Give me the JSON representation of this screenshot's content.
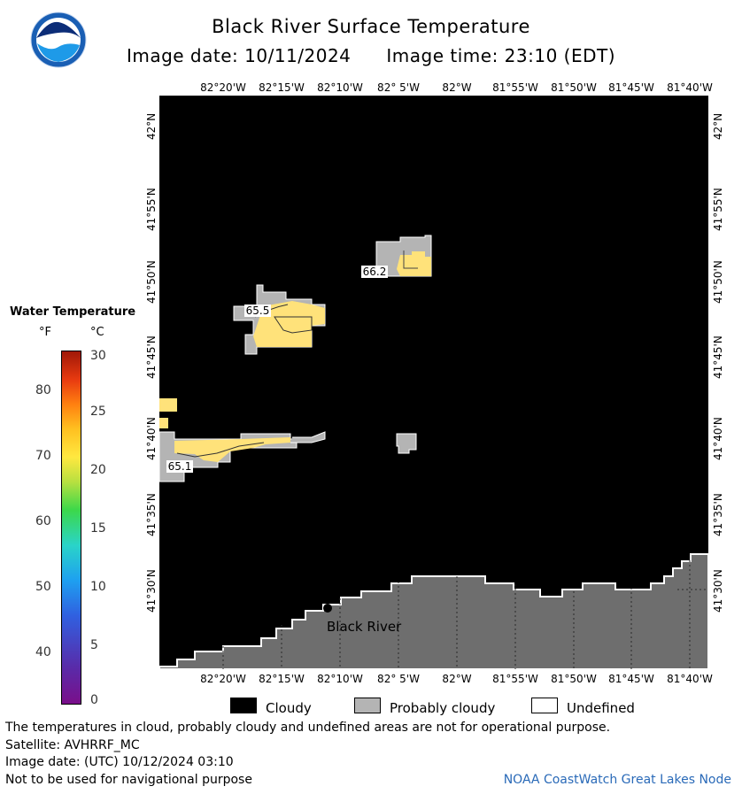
{
  "header": {
    "title": "Black River Surface Temperature",
    "image_date_label": "Image date: 10/11/2024",
    "image_time_label": "Image time: 23:10 (EDT)",
    "logo_text": "NOAA"
  },
  "map": {
    "longitude_labels": [
      "82°20'W",
      "82°15'W",
      "82°10'W",
      "82° 5'W",
      "82°W",
      "81°55'W",
      "81°50'W",
      "81°45'W",
      "81°40'W"
    ],
    "latitude_labels": [
      "42°N",
      "41°55'N",
      "41°50'N",
      "41°45'N",
      "41°40'N",
      "41°35'N",
      "41°30'N"
    ],
    "place_label": "Black River",
    "temperature_labels": [
      "66.2",
      "65.5",
      "65.1"
    ],
    "colors": {
      "cloudy": "#000000",
      "probably_cloudy": "#b4b4b4",
      "land": "#6e6e6e",
      "warm_water": "#ffe27a"
    }
  },
  "legend": {
    "title": "Water Temperature",
    "unit_f": "°F",
    "unit_c": "°C",
    "fahrenheit_ticks": [
      "80",
      "70",
      "60",
      "50",
      "40"
    ],
    "celsius_ticks": [
      "30",
      "25",
      "20",
      "15",
      "10",
      "5",
      "0"
    ],
    "keys": [
      {
        "label": "Cloudy",
        "color": "#000000"
      },
      {
        "label": "Probably cloudy",
        "color": "#b4b4b4"
      },
      {
        "label": "Undefined",
        "color": "#ffffff"
      }
    ]
  },
  "footer": {
    "disclaimer": "The temperatures in cloud, probably cloudy and undefined areas are not for operational purpose.",
    "satellite": "Satellite: AVHRRF_MC",
    "utc_date": "Image date: (UTC) 10/12/2024  03:10",
    "navigation_warning": "Not to be used for navigational purpose",
    "credit": "NOAA CoastWatch Great Lakes Node"
  }
}
